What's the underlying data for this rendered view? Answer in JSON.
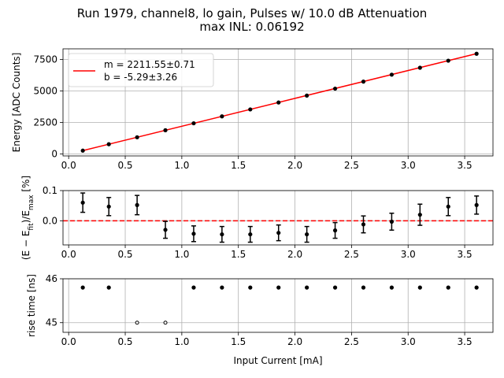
{
  "figure": {
    "title_line1": "Run 1979, channel8, lo gain, Pulses w/ 10.0 dB Attenuation",
    "title_line2": "max INL: 0.06192",
    "xlabel": "Input Current [mA]"
  },
  "chart_data": [
    {
      "type": "scatter",
      "panel": "energy",
      "ylabel": "Energy [ADC Counts]",
      "xlim": [
        -0.05,
        3.75
      ],
      "ylim": [
        -150,
        8350
      ],
      "xticks": [
        0.0,
        0.5,
        1.0,
        1.5,
        2.0,
        2.5,
        3.0,
        3.5
      ],
      "xtick_labels": [
        "0.0",
        "0.5",
        "1.0",
        "1.5",
        "2.0",
        "2.5",
        "3.0",
        "3.5"
      ],
      "yticks": [
        0,
        2500,
        5000,
        7500
      ],
      "ytick_labels": [
        "0",
        "2500",
        "5000",
        "7500"
      ],
      "grid": true,
      "legend_placement": "top-left",
      "fit": {
        "slope": 2211.55,
        "intercept": -5.29,
        "color": "#ff0000",
        "label_m": "m = 2211.55±0.71",
        "label_b": "b = -5.29±3.26"
      },
      "x": [
        0.125,
        0.355,
        0.605,
        0.855,
        1.105,
        1.355,
        1.605,
        1.855,
        2.105,
        2.355,
        2.605,
        2.855,
        3.105,
        3.355,
        3.605
      ],
      "y": [
        270,
        780,
        1330,
        1890,
        2440,
        2990,
        3540,
        4090,
        4640,
        5190,
        5750,
        6300,
        6850,
        7410,
        7960
      ],
      "marker_color": "#000000"
    },
    {
      "type": "scatter",
      "panel": "residual",
      "ylabel": "(E − E_fit)/E_max [%]",
      "xlim": [
        -0.05,
        3.75
      ],
      "ylim": [
        -0.08,
        0.1
      ],
      "yticks": [
        0.0,
        0.1
      ],
      "ytick_labels": [
        "0.0",
        "0.1"
      ],
      "xticks": [
        0.0,
        0.5,
        1.0,
        1.5,
        2.0,
        2.5,
        3.0,
        3.5
      ],
      "xtick_labels": [
        "0.0",
        "0.5",
        "1.0",
        "1.5",
        "2.0",
        "2.5",
        "3.0",
        "3.5"
      ],
      "grid": true,
      "zero_line_color": "#ff0000",
      "x": [
        0.125,
        0.355,
        0.605,
        0.855,
        1.105,
        1.355,
        1.605,
        1.855,
        2.105,
        2.355,
        2.605,
        2.855,
        3.105,
        3.355,
        3.605
      ],
      "y": [
        0.06,
        0.047,
        0.052,
        -0.03,
        -0.043,
        -0.045,
        -0.045,
        -0.04,
        -0.045,
        -0.032,
        -0.012,
        -0.003,
        0.02,
        0.047,
        0.052
      ],
      "yerr": [
        0.032,
        0.03,
        0.032,
        0.028,
        0.026,
        0.026,
        0.026,
        0.026,
        0.026,
        0.026,
        0.028,
        0.028,
        0.035,
        0.03,
        0.03
      ]
    },
    {
      "type": "scatter",
      "panel": "rise-time",
      "ylabel": "rise time [ns]",
      "xlim": [
        -0.05,
        3.75
      ],
      "ylim": [
        44.78,
        46.0
      ],
      "yticks": [
        45,
        46
      ],
      "ytick_labels": [
        "45",
        "46"
      ],
      "xticks": [
        0.0,
        0.5,
        1.0,
        1.5,
        2.0,
        2.5,
        3.0,
        3.5
      ],
      "xtick_labels": [
        "0.0",
        "0.5",
        "1.0",
        "1.5",
        "2.0",
        "2.5",
        "3.0",
        "3.5"
      ],
      "grid": true,
      "x": [
        0.125,
        0.355,
        0.605,
        0.855,
        1.105,
        1.355,
        1.605,
        1.855,
        2.105,
        2.355,
        2.605,
        2.855,
        3.105,
        3.355,
        3.605
      ],
      "y": [
        45.8,
        45.8,
        45.0,
        45.0,
        45.8,
        45.8,
        45.8,
        45.8,
        45.8,
        45.8,
        45.8,
        45.8,
        45.8,
        45.8,
        45.8
      ]
    }
  ]
}
